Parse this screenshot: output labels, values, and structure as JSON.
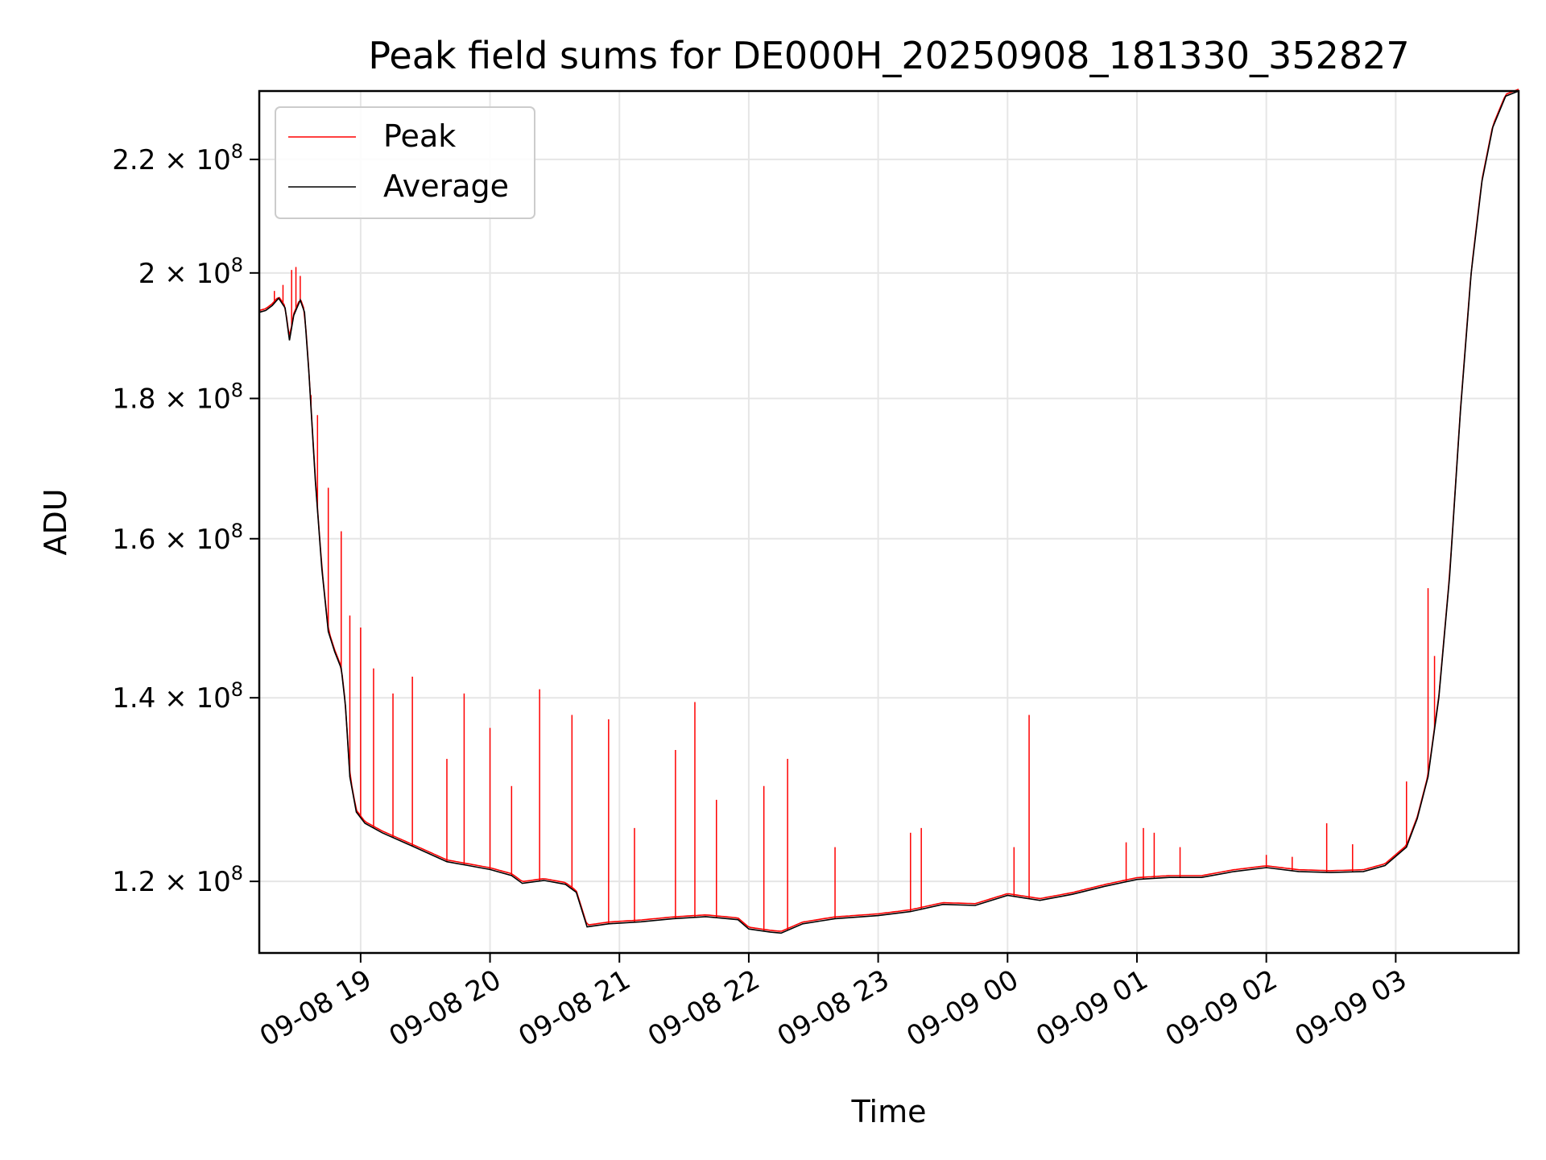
{
  "chart_data": {
    "type": "line",
    "title": "Peak field sums for DE000H_20250908_181330_352827",
    "xlabel": "Time",
    "ylabel": "ADU",
    "x_axis": {
      "scale": "time",
      "range": [
        "2025-09-08 18:13",
        "2025-09-09 03:57"
      ],
      "tick_values": [
        "2025-09-08 19:00",
        "2025-09-08 20:00",
        "2025-09-08 21:00",
        "2025-09-08 22:00",
        "2025-09-08 23:00",
        "2025-09-09 00:00",
        "2025-09-09 01:00",
        "2025-09-09 02:00",
        "2025-09-09 03:00"
      ],
      "tick_labels": [
        "09-08 19",
        "09-08 20",
        "09-08 21",
        "09-08 22",
        "09-08 23",
        "09-09 00",
        "09-09 01",
        "09-09 02",
        "09-09 03"
      ]
    },
    "y_axis": {
      "scale": "log",
      "range": [
        113000000,
        233000000
      ],
      "tick_values": [
        120000000,
        140000000,
        160000000,
        180000000,
        200000000,
        220000000
      ],
      "tick_labels": [
        {
          "mantissa": "1.2",
          "exponent": "8"
        },
        {
          "mantissa": "1.4",
          "exponent": "8"
        },
        {
          "mantissa": "1.6",
          "exponent": "8"
        },
        {
          "mantissa": "1.8",
          "exponent": "8"
        },
        {
          "mantissa": "2",
          "exponent": "8"
        },
        {
          "mantissa": "2.2",
          "exponent": "8"
        }
      ]
    },
    "grid": true,
    "legend": {
      "position": "top-left",
      "entries": [
        {
          "label": "Peak",
          "color": "#ff0000"
        },
        {
          "label": "Average",
          "color": "#000000"
        }
      ]
    },
    "series": [
      {
        "name": "Average",
        "color": "#000000",
        "points": [
          [
            "2025-09-08 18:13",
            193500000
          ],
          [
            "2025-09-08 18:16",
            193800000
          ],
          [
            "2025-09-08 18:19",
            194600000
          ],
          [
            "2025-09-08 18:22",
            195800000
          ],
          [
            "2025-09-08 18:25",
            194200000
          ],
          [
            "2025-09-08 18:27",
            189000000
          ],
          [
            "2025-09-08 18:29",
            193000000
          ],
          [
            "2025-09-08 18:32",
            195500000
          ],
          [
            "2025-09-08 18:34",
            193500000
          ],
          [
            "2025-09-08 18:36",
            184000000
          ],
          [
            "2025-09-08 18:39",
            168000000
          ],
          [
            "2025-09-08 18:42",
            156000000
          ],
          [
            "2025-09-08 18:45",
            148000000
          ],
          [
            "2025-09-08 18:48",
            145500000
          ],
          [
            "2025-09-08 18:51",
            143500000
          ],
          [
            "2025-09-08 18:53",
            139000000
          ],
          [
            "2025-09-08 18:55",
            131000000
          ],
          [
            "2025-09-08 18:58",
            127200000
          ],
          [
            "2025-09-08 19:02",
            126000000
          ],
          [
            "2025-09-08 19:10",
            125000000
          ],
          [
            "2025-09-08 19:20",
            124000000
          ],
          [
            "2025-09-08 19:30",
            123000000
          ],
          [
            "2025-09-08 19:40",
            122000000
          ],
          [
            "2025-09-08 19:50",
            121600000
          ],
          [
            "2025-09-08 20:00",
            121200000
          ],
          [
            "2025-09-08 20:10",
            120600000
          ],
          [
            "2025-09-08 20:15",
            119800000
          ],
          [
            "2025-09-08 20:25",
            120100000
          ],
          [
            "2025-09-08 20:35",
            119700000
          ],
          [
            "2025-09-08 20:40",
            118900000
          ],
          [
            "2025-09-08 20:45",
            115500000
          ],
          [
            "2025-09-08 20:55",
            115800000
          ],
          [
            "2025-09-08 21:10",
            116000000
          ],
          [
            "2025-09-08 21:25",
            116300000
          ],
          [
            "2025-09-08 21:40",
            116500000
          ],
          [
            "2025-09-08 21:55",
            116200000
          ],
          [
            "2025-09-08 22:00",
            115300000
          ],
          [
            "2025-09-08 22:10",
            115000000
          ],
          [
            "2025-09-08 22:15",
            114900000
          ],
          [
            "2025-09-08 22:25",
            115800000
          ],
          [
            "2025-09-08 22:40",
            116300000
          ],
          [
            "2025-09-08 23:00",
            116600000
          ],
          [
            "2025-09-08 23:15",
            117000000
          ],
          [
            "2025-09-08 23:30",
            117700000
          ],
          [
            "2025-09-08 23:45",
            117600000
          ],
          [
            "2025-09-09 00:00",
            118600000
          ],
          [
            "2025-09-09 00:15",
            118100000
          ],
          [
            "2025-09-09 00:30",
            118700000
          ],
          [
            "2025-09-09 00:45",
            119500000
          ],
          [
            "2025-09-09 01:00",
            120200000
          ],
          [
            "2025-09-09 01:15",
            120400000
          ],
          [
            "2025-09-09 01:30",
            120400000
          ],
          [
            "2025-09-09 01:45",
            121000000
          ],
          [
            "2025-09-09 02:00",
            121400000
          ],
          [
            "2025-09-09 02:15",
            121000000
          ],
          [
            "2025-09-09 02:30",
            120900000
          ],
          [
            "2025-09-09 02:45",
            121000000
          ],
          [
            "2025-09-09 02:55",
            121600000
          ],
          [
            "2025-09-09 03:05",
            123500000
          ],
          [
            "2025-09-09 03:10",
            126500000
          ],
          [
            "2025-09-09 03:15",
            131000000
          ],
          [
            "2025-09-09 03:20",
            140000000
          ],
          [
            "2025-09-09 03:25",
            155000000
          ],
          [
            "2025-09-09 03:30",
            178000000
          ],
          [
            "2025-09-09 03:35",
            200000000
          ],
          [
            "2025-09-09 03:40",
            216000000
          ],
          [
            "2025-09-09 03:45",
            226000000
          ],
          [
            "2025-09-09 03:51",
            232000000
          ],
          [
            "2025-09-09 03:57",
            233000000
          ]
        ]
      },
      {
        "name": "Peak",
        "color": "#ff0000",
        "baseline": "follows Average",
        "spikes": [
          [
            "2025-09-08 18:20",
            197000000
          ],
          [
            "2025-09-08 18:24",
            198000000
          ],
          [
            "2025-09-08 18:28",
            200500000
          ],
          [
            "2025-09-08 18:30",
            201000000
          ],
          [
            "2025-09-08 18:32",
            199500000
          ],
          [
            "2025-09-08 18:37",
            180500000
          ],
          [
            "2025-09-08 18:40",
            177500000
          ],
          [
            "2025-09-08 18:45",
            167000000
          ],
          [
            "2025-09-08 18:51",
            161000000
          ],
          [
            "2025-09-08 18:55",
            150000000
          ],
          [
            "2025-09-08 19:00",
            148500000
          ],
          [
            "2025-09-08 19:06",
            143500000
          ],
          [
            "2025-09-08 19:15",
            140500000
          ],
          [
            "2025-09-08 19:24",
            142500000
          ],
          [
            "2025-09-08 19:40",
            133000000
          ],
          [
            "2025-09-08 19:48",
            140500000
          ],
          [
            "2025-09-08 20:00",
            136500000
          ],
          [
            "2025-09-08 20:10",
            130000000
          ],
          [
            "2025-09-08 20:23",
            141000000
          ],
          [
            "2025-09-08 20:38",
            138000000
          ],
          [
            "2025-09-08 20:55",
            137500000
          ],
          [
            "2025-09-08 21:07",
            125500000
          ],
          [
            "2025-09-08 21:26",
            134000000
          ],
          [
            "2025-09-08 21:35",
            139500000
          ],
          [
            "2025-09-08 21:45",
            128500000
          ],
          [
            "2025-09-08 22:07",
            130000000
          ],
          [
            "2025-09-08 22:18",
            133000000
          ],
          [
            "2025-09-08 22:40",
            123500000
          ],
          [
            "2025-09-08 23:15",
            125000000
          ],
          [
            "2025-09-08 23:20",
            125500000
          ],
          [
            "2025-09-09 00:03",
            123500000
          ],
          [
            "2025-09-09 00:10",
            138000000
          ],
          [
            "2025-09-09 00:55",
            124000000
          ],
          [
            "2025-09-09 01:03",
            125500000
          ],
          [
            "2025-09-09 01:08",
            125000000
          ],
          [
            "2025-09-09 01:20",
            123500000
          ],
          [
            "2025-09-09 02:00",
            122700000
          ],
          [
            "2025-09-09 02:12",
            122500000
          ],
          [
            "2025-09-09 02:28",
            126000000
          ],
          [
            "2025-09-09 02:40",
            123800000
          ],
          [
            "2025-09-09 03:05",
            130500000
          ],
          [
            "2025-09-09 03:15",
            153500000
          ],
          [
            "2025-09-09 03:18",
            145000000
          ]
        ]
      }
    ]
  }
}
